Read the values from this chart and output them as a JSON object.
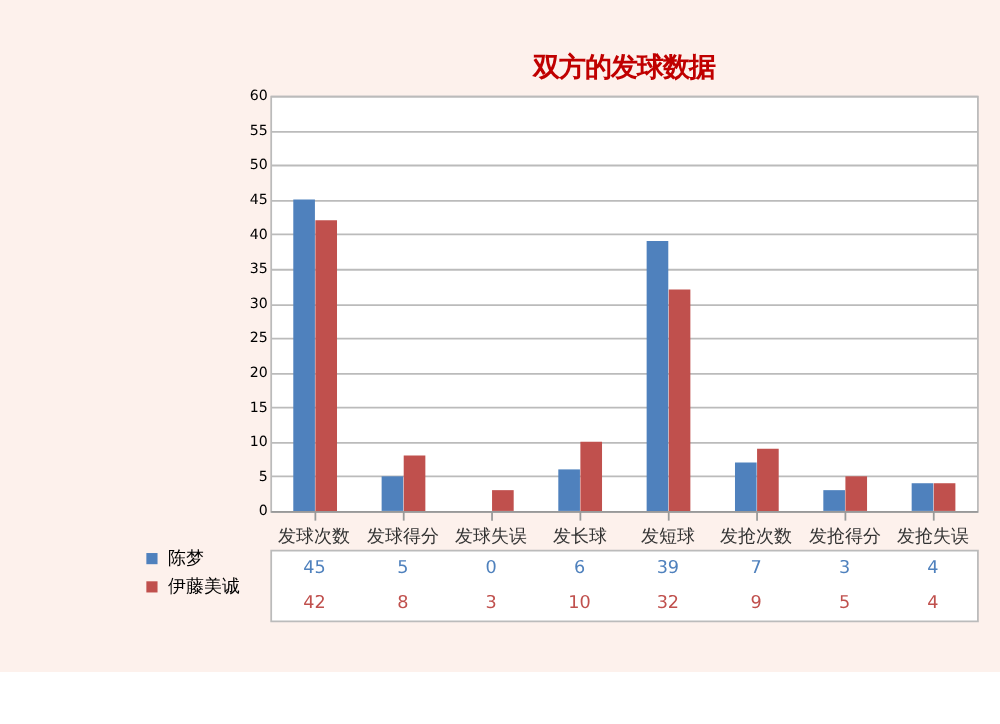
{
  "chart_data": {
    "type": "bar",
    "title": "双方的发球数据",
    "categories": [
      "发球次数",
      "发球得分",
      "发球失误",
      "发长球",
      "发短球",
      "发抢次数",
      "发抢得分",
      "发抢失误"
    ],
    "series": [
      {
        "name": "陈梦",
        "color": "#4f81bd",
        "values": [
          45,
          5,
          0,
          6,
          39,
          7,
          3,
          4
        ]
      },
      {
        "name": "伊藤美诚",
        "color": "#c0504d",
        "values": [
          42,
          8,
          3,
          10,
          32,
          9,
          5,
          4
        ]
      }
    ],
    "ylim": [
      0,
      60
    ],
    "yticks": [
      0,
      5,
      10,
      15,
      20,
      25,
      30,
      35,
      40,
      45,
      50,
      55,
      60
    ],
    "grid": "y",
    "legend": "bottom left",
    "data_labels": true
  }
}
